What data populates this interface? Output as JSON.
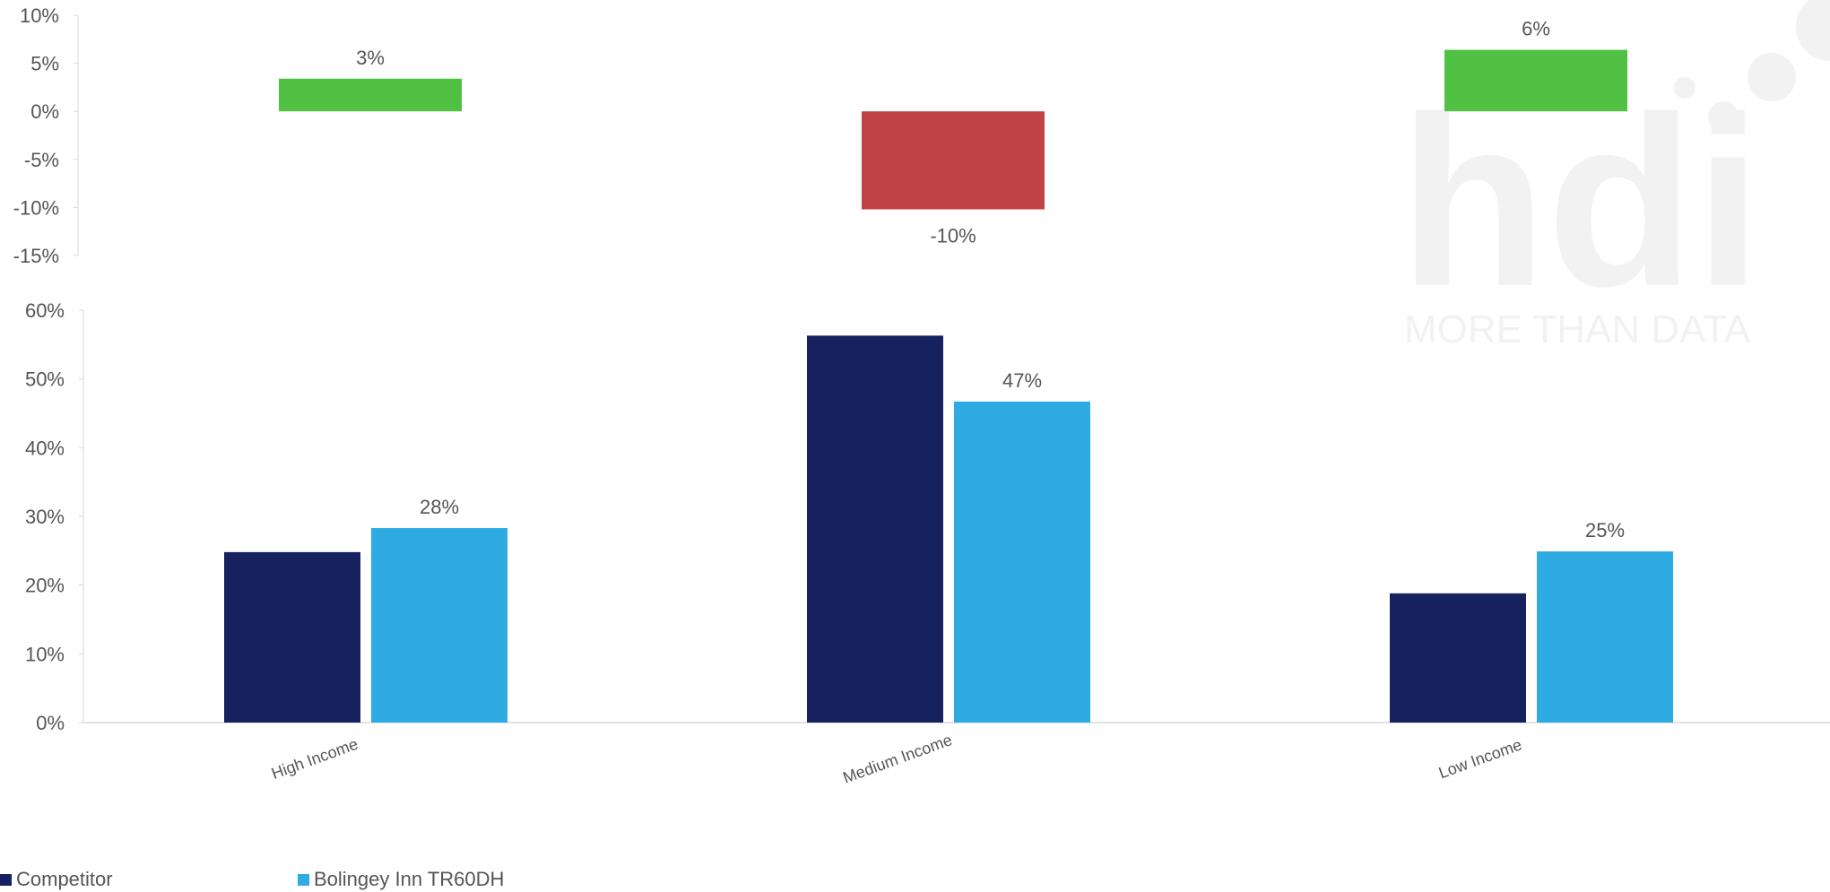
{
  "colors": {
    "competitor": "#15225F",
    "bolingey": "#2EABE2",
    "positive": "#50C143",
    "negative": "#C14245",
    "axis": "#D9D9D9",
    "text": "#555555",
    "watermark": "#E6E6E6"
  },
  "watermark": {
    "logo": "hdi",
    "tagline": "MORE THAN DATA"
  },
  "chart_data": [
    {
      "type": "bar",
      "categories": [
        "High Income",
        "Medium Income",
        "Low Income"
      ],
      "values": [
        3.4,
        -10.2,
        6.4
      ],
      "data_labels": [
        "3%",
        "-10%",
        "6%"
      ],
      "ylim": [
        -15,
        10
      ],
      "yticks": [
        "10%",
        "5%",
        "0%",
        "-5%",
        "-10%",
        "-15%"
      ],
      "title": "",
      "xlabel": "",
      "ylabel": ""
    },
    {
      "type": "bar",
      "categories": [
        "High Income",
        "Medium Income",
        "Low Income"
      ],
      "series": [
        {
          "name": "Competitor",
          "values": [
            24.8,
            56.3,
            18.8
          ],
          "data_labels": [
            "",
            "",
            ""
          ]
        },
        {
          "name": "Bolingey Inn TR60DH",
          "values": [
            28.3,
            46.7,
            24.9
          ],
          "data_labels": [
            "28%",
            "47%",
            "25%"
          ]
        }
      ],
      "ylim": [
        0,
        60
      ],
      "yticks": [
        "60%",
        "50%",
        "40%",
        "30%",
        "20%",
        "10%",
        "0%"
      ],
      "legend": "bottom-left",
      "grid": false,
      "title": "",
      "xlabel": "",
      "ylabel": ""
    }
  ]
}
